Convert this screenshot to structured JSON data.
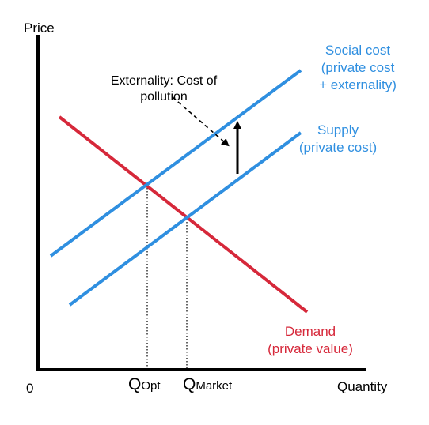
{
  "axes": {
    "y_label": "Price",
    "x_label": "Quantity",
    "origin_label": "0"
  },
  "curves": {
    "social_cost": {
      "line1": "Social cost",
      "line2": "(private cost",
      "line3": "+ externality)",
      "color": "#2f8fe0"
    },
    "supply": {
      "line1": "Supply",
      "line2": "(private cost)",
      "color": "#2f8fe0"
    },
    "demand": {
      "line1": "Demand",
      "line2": "(private value)",
      "color": "#d6283a"
    }
  },
  "annotation": {
    "line1": "Externality: Cost of",
    "line2": "pollution"
  },
  "quantities": {
    "opt": {
      "main": "Q",
      "sub": "Opt"
    },
    "market": {
      "main": "Q",
      "sub": "Market"
    }
  }
}
